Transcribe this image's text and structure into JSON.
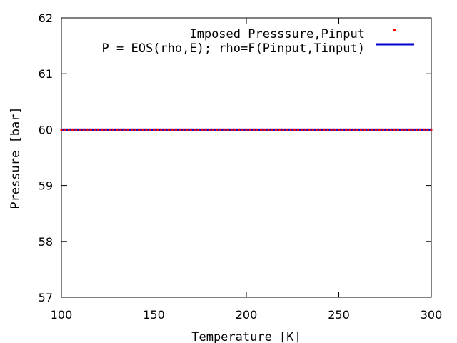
{
  "chart_data": {
    "type": "line",
    "title": "",
    "xlabel": "Temperature [K]",
    "ylabel": "Pressure [bar]",
    "xlim": [
      100,
      300
    ],
    "ylim": [
      57,
      62
    ],
    "x_ticks": [
      100,
      150,
      200,
      250,
      300
    ],
    "y_ticks": [
      57,
      58,
      59,
      60,
      61,
      62
    ],
    "grid": false,
    "legend_position": "top-right",
    "series": [
      {
        "name": "Imposed Presssure,Pinput",
        "style": "points",
        "color": "#ff0000",
        "x": [
          100,
          102,
          104,
          106,
          108,
          110,
          112,
          114,
          116,
          118,
          120,
          122,
          124,
          126,
          128,
          130,
          132,
          134,
          136,
          138,
          140,
          142,
          144,
          146,
          148,
          150,
          152,
          154,
          156,
          158,
          160,
          162,
          164,
          166,
          168,
          170,
          172,
          174,
          176,
          178,
          180,
          182,
          184,
          186,
          188,
          190,
          192,
          194,
          196,
          198,
          200,
          202,
          204,
          206,
          208,
          210,
          212,
          214,
          216,
          218,
          220,
          222,
          224,
          226,
          228,
          230,
          232,
          234,
          236,
          238,
          240,
          242,
          244,
          246,
          248,
          250,
          252,
          254,
          256,
          258,
          260,
          262,
          264,
          266,
          268,
          270,
          272,
          274,
          276,
          278,
          280,
          282,
          284,
          286,
          288,
          290,
          292,
          294,
          296,
          298,
          300
        ],
        "y_constant": 60
      },
      {
        "name": "P = EOS(rho,E); rho=F(Pinput,Tinput)",
        "style": "line",
        "color": "#0000cc",
        "x": [
          100,
          300
        ],
        "y": [
          60,
          60
        ]
      }
    ]
  }
}
